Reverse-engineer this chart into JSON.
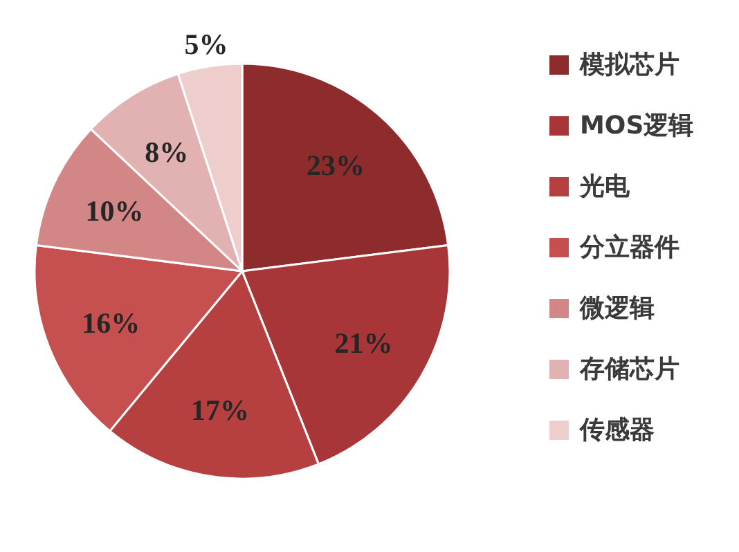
{
  "chart_data": {
    "type": "pie",
    "categories": [
      "模拟芯片",
      "MOS逻辑",
      "光电",
      "分立器件",
      "微逻辑",
      "存储芯片",
      "传感器"
    ],
    "values": [
      23,
      21,
      17,
      16,
      10,
      8,
      5
    ],
    "value_labels": [
      "23%",
      "21%",
      "17%",
      "16%",
      "10%",
      "8%",
      "5%"
    ],
    "colors": [
      "#8e2b2d",
      "#a83638",
      "#b5403f",
      "#c65050",
      "#d38686",
      "#e2b1b1",
      "#eecdcd"
    ],
    "legend": "right"
  }
}
